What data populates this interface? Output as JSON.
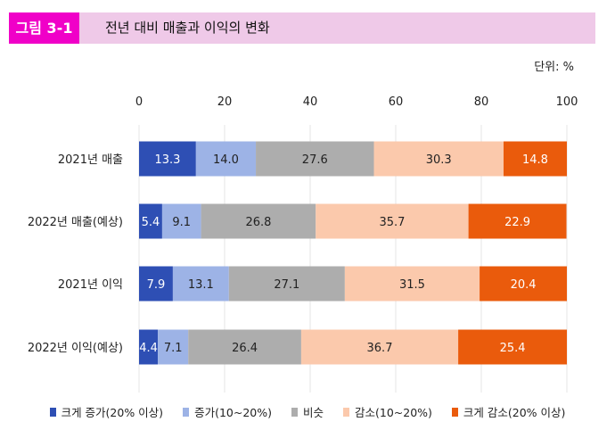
{
  "header": {
    "figure_label": "그림 3-1",
    "title": "전년 대비 매출과 이익의 변화"
  },
  "unit_label": "단위: %",
  "chart_data": {
    "type": "bar",
    "orientation": "horizontal",
    "stacked": true,
    "title": "전년 대비 매출과 이익의 변화",
    "xlim": [
      0,
      100
    ],
    "xticks": [
      "0",
      "20",
      "40",
      "60",
      "80",
      "100"
    ],
    "categories": [
      "2021년 매출",
      "2022년 매출(예상)",
      "2021년 이익",
      "2022년 이익(예상)"
    ],
    "series": [
      {
        "name": "크게 증가(20% 이상)",
        "color": "#2e4fb4",
        "values": [
          13.3,
          5.4,
          7.9,
          4.4
        ]
      },
      {
        "name": "증가(10~20%)",
        "color": "#9db3e6",
        "values": [
          14.0,
          9.1,
          13.1,
          7.1
        ]
      },
      {
        "name": "비슷",
        "color": "#adadad",
        "values": [
          27.6,
          26.8,
          27.1,
          26.4
        ]
      },
      {
        "name": "감소(10~20%)",
        "color": "#fbc9ac",
        "values": [
          30.3,
          35.7,
          31.5,
          36.7
        ]
      },
      {
        "name": "크게 감소(20% 이상)",
        "color": "#ea5b0c",
        "values": [
          14.8,
          22.9,
          20.4,
          25.4
        ]
      }
    ],
    "legend": "bottom",
    "grid": true
  }
}
